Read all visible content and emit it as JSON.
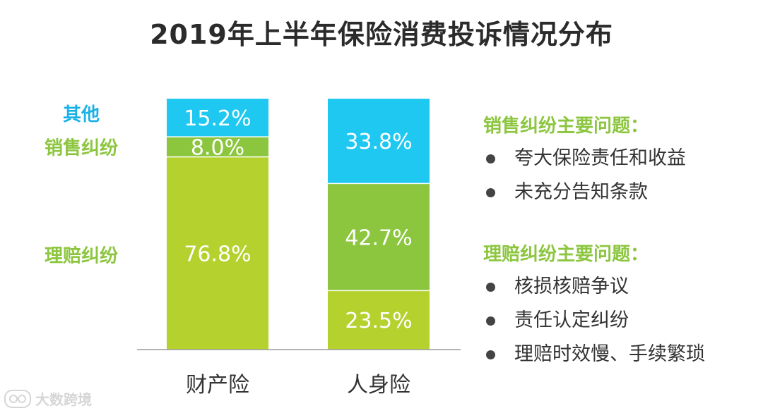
{
  "chart_data": {
    "type": "bar",
    "stacked": true,
    "percent": true,
    "title": "2019年上半年保险消费投诉情况分布",
    "categories": [
      "财产险",
      "人身险"
    ],
    "series": [
      {
        "name": "理赔纠纷",
        "values": [
          76.8,
          23.5
        ],
        "labels": [
          "76.8%",
          "23.5%"
        ],
        "color": "#b4d12e",
        "legend_color": "#8cc63f"
      },
      {
        "name": "销售纠纷",
        "values": [
          8.0,
          42.7
        ],
        "labels": [
          "8.0%",
          "42.7%"
        ],
        "color": "#8cc63f",
        "legend_color": "#8cc63f"
      },
      {
        "name": "其他",
        "values": [
          15.2,
          33.8
        ],
        "labels": [
          "15.2%",
          "33.8%"
        ],
        "color": "#1ec8f0",
        "legend_color": "#1ab2e6"
      }
    ],
    "ylim": [
      0,
      100
    ],
    "grid": false,
    "legend": "left"
  },
  "panels": {
    "sales": {
      "heading": "销售纠纷主要问题：",
      "items": [
        "夸大保险责任和收益",
        "未充分告知条款"
      ]
    },
    "claims": {
      "heading": "理赔纠纷主要问题：",
      "items": [
        "核损核赔争议",
        "责任认定纠纷",
        "理赔时效慢、手续繁琐"
      ]
    }
  },
  "watermark": {
    "text": "大数跨境",
    "icon": "logo-icon"
  }
}
